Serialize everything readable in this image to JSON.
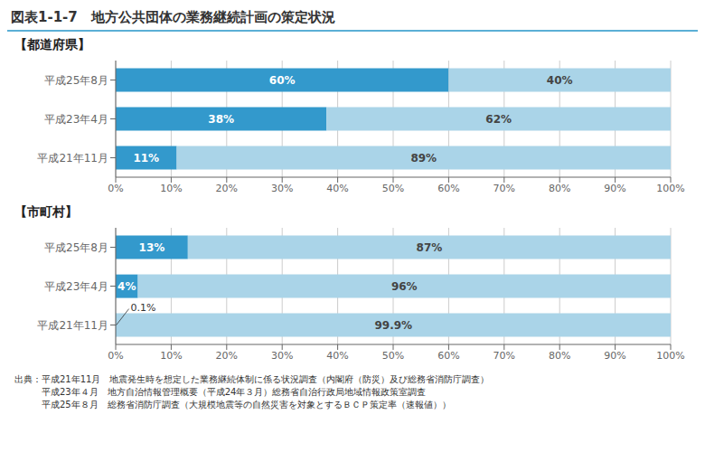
{
  "chart_data": [
    {
      "type": "bar",
      "title": "図表1-1-7　地方公共団体の業務継続計画の策定状況",
      "subtitle": "【都道府県】",
      "orientation": "horizontal",
      "stacked": true,
      "grid": true,
      "data_labels": true,
      "categories": [
        "平成21年11月",
        "平成23年4月",
        "平成25年8月"
      ],
      "series": [
        {
          "color": "#3399cc",
          "values": [
            11,
            38,
            60
          ],
          "value_labels": [
            "11%",
            "38%",
            "60%"
          ]
        },
        {
          "color": "#aad4e8",
          "values": [
            89,
            62,
            40
          ],
          "value_labels": [
            "89%",
            "62%",
            "40%"
          ]
        }
      ],
      "xlim": [
        0,
        100
      ],
      "xticks": [
        {
          "value": 0,
          "label": "0%"
        },
        {
          "value": 10,
          "label": "10%"
        },
        {
          "value": 20,
          "label": "20%"
        },
        {
          "value": 30,
          "label": "30%"
        },
        {
          "value": 40,
          "label": "40%"
        },
        {
          "value": 50,
          "label": "50%"
        },
        {
          "value": 60,
          "label": "60%"
        },
        {
          "value": 70,
          "label": "70%"
        },
        {
          "value": 80,
          "label": "80%"
        },
        {
          "value": 90,
          "label": "90%"
        },
        {
          "value": 100,
          "label": "100%"
        }
      ]
    },
    {
      "type": "bar",
      "subtitle": "【市町村】",
      "orientation": "horizontal",
      "stacked": true,
      "grid": true,
      "data_labels": true,
      "categories": [
        "平成21年11月",
        "平成23年4月",
        "平成25年8月"
      ],
      "series": [
        {
          "color": "#3399cc",
          "values": [
            0.1,
            4,
            13
          ],
          "value_labels": [
            "0.1%",
            "4%",
            "13%"
          ]
        },
        {
          "color": "#aad4e8",
          "values": [
            99.9,
            96,
            87
          ],
          "value_labels": [
            "99.9%",
            "96%",
            "87%"
          ]
        }
      ],
      "xlim": [
        0,
        100
      ],
      "xticks": [
        {
          "value": 0,
          "label": "0%"
        },
        {
          "value": 10,
          "label": "10%"
        },
        {
          "value": 20,
          "label": "20%"
        },
        {
          "value": 30,
          "label": "30%"
        },
        {
          "value": 40,
          "label": "40%"
        },
        {
          "value": 50,
          "label": "50%"
        },
        {
          "value": 60,
          "label": "60%"
        },
        {
          "value": 70,
          "label": "70%"
        },
        {
          "value": 80,
          "label": "80%"
        },
        {
          "value": 90,
          "label": "90%"
        },
        {
          "value": 100,
          "label": "100%"
        }
      ],
      "annotations": [
        "出典：平成21年11月　地震発生時を想定した業務継続体制に係る状況調査（内閣府（防災）及び総務省消防庁調査）",
        "　　　平成23年４月　地方自治情報管理概要（平成24年３月）総務省自治行政局地域情報政策室調査",
        "　　　平成25年８月　総務省消防庁調査（大規模地震等の自然災害を対象とするＢＣＰ策定率（速報値））"
      ]
    }
  ]
}
